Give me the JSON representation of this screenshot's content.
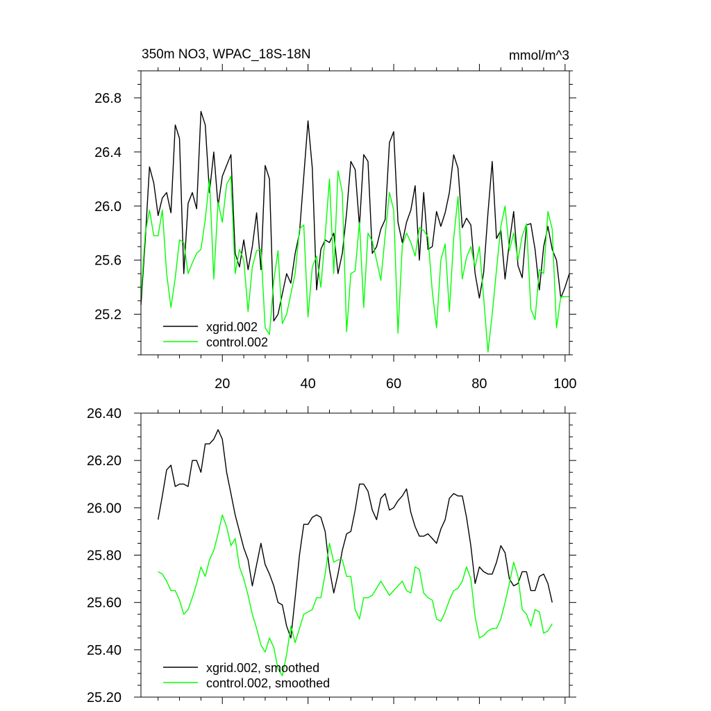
{
  "chart_data": [
    {
      "type": "line",
      "title": "350m NO3, WPAC_18S-18N",
      "units": "mmol/m^3",
      "xlabel": "",
      "ylabel": "",
      "xlim": [
        1,
        101
      ],
      "ylim": [
        24.9,
        27.0
      ],
      "x_ticks": [
        20,
        40,
        60,
        80,
        100
      ],
      "x_tick_labels": [
        "20",
        "40",
        "60",
        "80",
        "100"
      ],
      "y_ticks": [
        25.2,
        25.6,
        26.0,
        26.4,
        26.8
      ],
      "y_tick_labels": [
        "25.2",
        "25.6",
        "26.0",
        "26.4",
        "26.8"
      ],
      "legend_position": "bottom-left",
      "x": [
        1,
        2,
        3,
        4,
        5,
        6,
        7,
        8,
        9,
        10,
        11,
        12,
        13,
        14,
        15,
        16,
        17,
        18,
        19,
        20,
        21,
        22,
        23,
        24,
        25,
        26,
        27,
        28,
        29,
        30,
        31,
        32,
        33,
        34,
        35,
        36,
        37,
        38,
        39,
        40,
        41,
        42,
        43,
        44,
        45,
        46,
        47,
        48,
        49,
        50,
        51,
        52,
        53,
        54,
        55,
        56,
        57,
        58,
        59,
        60,
        61,
        62,
        63,
        64,
        65,
        66,
        67,
        68,
        69,
        70,
        71,
        72,
        73,
        74,
        75,
        76,
        77,
        78,
        79,
        80,
        81,
        82,
        83,
        84,
        85,
        86,
        87,
        88,
        89,
        90,
        91,
        92,
        93,
        94,
        95,
        96,
        97,
        98,
        99,
        100,
        101
      ],
      "series": [
        {
          "name": "xgrid.002",
          "color": "#000000",
          "values": [
            25.27,
            25.75,
            26.29,
            26.17,
            25.93,
            26.06,
            26.1,
            25.95,
            26.6,
            26.5,
            25.5,
            26.02,
            26.1,
            25.98,
            26.7,
            26.6,
            26.1,
            26.4,
            26.0,
            26.22,
            26.3,
            26.38,
            25.65,
            25.55,
            25.75,
            25.53,
            25.7,
            25.95,
            25.53,
            26.3,
            26.2,
            25.15,
            25.2,
            25.35,
            25.5,
            25.43,
            25.65,
            25.8,
            26.22,
            26.63,
            26.28,
            25.38,
            25.68,
            25.75,
            25.73,
            25.8,
            25.5,
            25.65,
            25.95,
            26.33,
            26.27,
            25.85,
            26.38,
            26.33,
            25.65,
            25.7,
            25.83,
            25.9,
            26.47,
            26.55,
            25.88,
            25.73,
            25.88,
            25.97,
            26.15,
            25.6,
            26.1,
            25.68,
            25.7,
            25.96,
            25.85,
            25.95,
            26.1,
            26.38,
            26.28,
            25.84,
            25.91,
            25.86,
            25.5,
            25.32,
            25.51,
            25.95,
            26.33,
            25.76,
            25.82,
            25.46,
            25.73,
            25.96,
            25.56,
            25.47,
            25.86,
            25.87,
            25.68,
            25.38,
            25.7,
            25.85,
            25.68,
            25.6,
            25.32,
            25.4,
            25.5
          ]
        },
        {
          "name": "control.002",
          "color": "#00ff00",
          "values": [
            25.33,
            25.8,
            25.97,
            25.78,
            25.78,
            25.97,
            25.5,
            25.25,
            25.47,
            25.75,
            25.73,
            25.5,
            25.58,
            25.65,
            25.68,
            25.9,
            26.2,
            25.46,
            26.03,
            25.88,
            26.16,
            26.22,
            25.5,
            25.68,
            25.6,
            25.22,
            25.55,
            25.67,
            25.68,
            25.1,
            25.05,
            25.45,
            25.67,
            25.13,
            25.2,
            25.35,
            25.5,
            25.83,
            25.86,
            25.18,
            25.55,
            25.63,
            25.4,
            25.78,
            26.2,
            25.5,
            26.26,
            26.1,
            25.07,
            25.5,
            25.52,
            25.88,
            25.25,
            25.8,
            25.74,
            25.6,
            25.45,
            25.78,
            26.1,
            25.97,
            25.06,
            25.71,
            25.8,
            25.73,
            25.63,
            25.84,
            25.82,
            25.77,
            25.37,
            25.1,
            25.6,
            25.72,
            25.22,
            25.76,
            26.07,
            25.46,
            25.62,
            25.7,
            25.55,
            25.7,
            25.32,
            24.92,
            25.2,
            25.53,
            25.85,
            26.0,
            25.67,
            25.8,
            25.6,
            25.78,
            25.87,
            25.24,
            25.16,
            25.53,
            25.5,
            25.96,
            25.83,
            25.1,
            25.33,
            25.33,
            25.33
          ]
        }
      ]
    },
    {
      "type": "line",
      "title": "",
      "xlabel": "",
      "ylabel": "",
      "xlim": [
        1,
        101
      ],
      "ylim": [
        25.2,
        26.4
      ],
      "x_ticks": [
        20,
        40,
        60,
        80,
        100
      ],
      "y_ticks": [
        25.2,
        25.4,
        25.6,
        25.8,
        26.0,
        26.2,
        26.4
      ],
      "y_tick_labels": [
        "25.20",
        "25.40",
        "25.60",
        "25.80",
        "26.00",
        "26.20",
        "26.40"
      ],
      "legend_position": "bottom-left",
      "x": [
        5,
        6,
        7,
        8,
        9,
        10,
        11,
        12,
        13,
        14,
        15,
        16,
        17,
        18,
        19,
        20,
        21,
        22,
        23,
        24,
        25,
        26,
        27,
        28,
        29,
        30,
        31,
        32,
        33,
        34,
        35,
        36,
        37,
        38,
        39,
        40,
        41,
        42,
        43,
        44,
        45,
        46,
        47,
        48,
        49,
        50,
        51,
        52,
        53,
        54,
        55,
        56,
        57,
        58,
        59,
        60,
        61,
        62,
        63,
        64,
        65,
        66,
        67,
        68,
        69,
        70,
        71,
        72,
        73,
        74,
        75,
        76,
        77,
        78,
        79,
        80,
        81,
        82,
        83,
        84,
        85,
        86,
        87,
        88,
        89,
        90,
        91,
        92,
        93,
        94,
        95,
        96,
        97
      ],
      "series": [
        {
          "name": "xgrid.002, smoothed",
          "color": "#000000",
          "values": [
            25.95,
            26.05,
            26.16,
            26.18,
            26.09,
            26.1,
            26.1,
            26.09,
            26.2,
            26.2,
            26.15,
            26.27,
            26.27,
            26.29,
            26.33,
            26.29,
            26.15,
            26.06,
            25.97,
            25.9,
            25.83,
            25.78,
            25.67,
            25.76,
            25.85,
            25.76,
            25.72,
            25.67,
            25.6,
            25.59,
            25.5,
            25.45,
            25.62,
            25.8,
            25.93,
            25.93,
            25.96,
            25.97,
            25.96,
            25.9,
            25.74,
            25.64,
            25.72,
            25.82,
            25.89,
            25.9,
            25.99,
            26.1,
            26.1,
            26.07,
            25.99,
            25.95,
            26.04,
            26.06,
            25.99,
            26.0,
            26.03,
            26.05,
            26.08,
            25.98,
            25.92,
            25.88,
            25.88,
            25.89,
            25.87,
            25.85,
            25.91,
            25.95,
            26.04,
            26.06,
            26.05,
            26.05,
            25.96,
            25.84,
            25.68,
            25.75,
            25.73,
            25.72,
            25.72,
            25.77,
            25.84,
            25.81,
            25.7,
            25.67,
            25.68,
            25.73,
            25.73,
            25.65,
            25.65,
            25.71,
            25.72,
            25.68,
            25.6
          ]
        },
        {
          "name": "control.002, smoothed",
          "color": "#00ff00",
          "values": [
            25.73,
            25.72,
            25.69,
            25.65,
            25.65,
            25.61,
            25.55,
            25.57,
            25.62,
            25.68,
            25.75,
            25.71,
            25.78,
            25.82,
            25.89,
            25.97,
            25.92,
            25.84,
            25.87,
            25.75,
            25.7,
            25.63,
            25.55,
            25.49,
            25.42,
            25.39,
            25.45,
            25.41,
            25.32,
            25.29,
            25.38,
            25.5,
            25.43,
            25.49,
            25.55,
            25.56,
            25.57,
            25.62,
            25.62,
            25.72,
            25.85,
            25.77,
            25.78,
            25.78,
            25.71,
            25.71,
            25.57,
            25.53,
            25.62,
            25.62,
            25.63,
            25.66,
            25.69,
            25.66,
            25.63,
            25.65,
            25.67,
            25.69,
            25.65,
            25.64,
            25.75,
            25.74,
            25.64,
            25.62,
            25.61,
            25.53,
            25.52,
            25.56,
            25.61,
            25.65,
            25.66,
            25.69,
            25.75,
            25.7,
            25.54,
            25.45,
            25.46,
            25.48,
            25.49,
            25.49,
            25.53,
            25.6,
            25.68,
            25.77,
            25.71,
            25.57,
            25.55,
            25.5,
            25.57,
            25.56,
            25.47,
            25.48,
            25.51
          ]
        }
      ]
    }
  ]
}
